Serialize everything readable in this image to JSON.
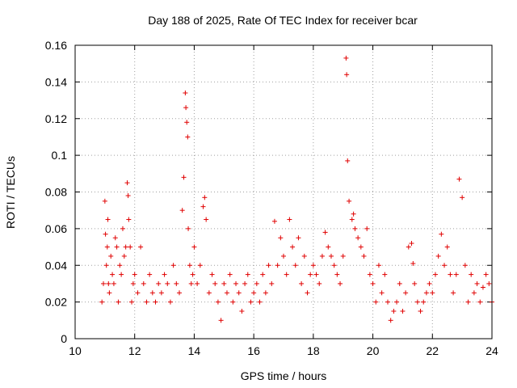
{
  "chart_data": {
    "type": "scatter",
    "title": "Day 188 of 2025, Rate Of TEC Index for receiver bcar",
    "xlabel": "GPS time / hours",
    "ylabel": "ROTI / TECUs",
    "xlim": [
      10,
      24
    ],
    "ylim": [
      0,
      0.16
    ],
    "x_ticks": [
      "10",
      "12",
      "14",
      "16",
      "18",
      "20",
      "22",
      "24"
    ],
    "y_ticks": [
      "0",
      "0.02",
      "0.04",
      "0.06",
      "0.08",
      "0.1",
      "0.12",
      "0.14",
      "0.16"
    ],
    "grid": true,
    "marker": "plus",
    "color": "#e00000",
    "series": [
      {
        "x": [
          10.9,
          10.95,
          11.0,
          11.02,
          11.05,
          11.08,
          11.1,
          11.12,
          11.15,
          11.2,
          11.25,
          11.3,
          11.35,
          11.4,
          11.45,
          11.5,
          11.55,
          11.6,
          11.65,
          11.7,
          11.75,
          11.78,
          11.8,
          11.85,
          11.9,
          11.95,
          12.0,
          12.1,
          12.2,
          12.3,
          12.4,
          12.5,
          12.6,
          12.7,
          12.8,
          12.9,
          13.0,
          13.1,
          13.2,
          13.3,
          13.4,
          13.5,
          13.6,
          13.65,
          13.7,
          13.72,
          13.75,
          13.78,
          13.8,
          13.85,
          13.9,
          13.95,
          14.0,
          14.1,
          14.2,
          14.3,
          14.35,
          14.4,
          14.5,
          14.6,
          14.7,
          14.8,
          14.9,
          15.0,
          15.1,
          15.2,
          15.3,
          15.4,
          15.5,
          15.6,
          15.7,
          15.8,
          15.9,
          16.0,
          16.1,
          16.2,
          16.3,
          16.4,
          16.5,
          16.6,
          16.7,
          16.8,
          16.9,
          17.0,
          17.1,
          17.2,
          17.3,
          17.4,
          17.5,
          17.6,
          17.7,
          17.8,
          17.9,
          18.0,
          18.1,
          18.2,
          18.3,
          18.4,
          18.5,
          18.6,
          18.7,
          18.8,
          18.9,
          19.0,
          19.1,
          19.12,
          19.15,
          19.2,
          19.3,
          19.35,
          19.4,
          19.5,
          19.6,
          19.7,
          19.8,
          19.9,
          20.0,
          20.1,
          20.2,
          20.3,
          20.4,
          20.5,
          20.6,
          20.7,
          20.8,
          20.9,
          21.0,
          21.1,
          21.2,
          21.3,
          21.35,
          21.4,
          21.5,
          21.6,
          21.7,
          21.8,
          21.9,
          22.0,
          22.1,
          22.2,
          22.3,
          22.4,
          22.5,
          22.6,
          22.7,
          22.8,
          22.9,
          23.0,
          23.1,
          23.2,
          23.3,
          23.4,
          23.5,
          23.6,
          23.7,
          23.8,
          23.9,
          24.0
        ],
        "y": [
          0.02,
          0.03,
          0.075,
          0.057,
          0.04,
          0.05,
          0.065,
          0.03,
          0.025,
          0.045,
          0.035,
          0.03,
          0.055,
          0.05,
          0.02,
          0.04,
          0.035,
          0.06,
          0.045,
          0.05,
          0.085,
          0.078,
          0.065,
          0.05,
          0.02,
          0.03,
          0.035,
          0.025,
          0.05,
          0.03,
          0.02,
          0.035,
          0.025,
          0.02,
          0.03,
          0.025,
          0.035,
          0.03,
          0.02,
          0.04,
          0.03,
          0.025,
          0.07,
          0.088,
          0.134,
          0.126,
          0.118,
          0.11,
          0.06,
          0.04,
          0.03,
          0.035,
          0.05,
          0.03,
          0.04,
          0.072,
          0.077,
          0.065,
          0.025,
          0.035,
          0.03,
          0.02,
          0.01,
          0.03,
          0.025,
          0.035,
          0.02,
          0.03,
          0.025,
          0.015,
          0.03,
          0.035,
          0.02,
          0.025,
          0.03,
          0.02,
          0.035,
          0.025,
          0.04,
          0.03,
          0.064,
          0.04,
          0.055,
          0.045,
          0.035,
          0.065,
          0.05,
          0.04,
          0.055,
          0.03,
          0.045,
          0.025,
          0.035,
          0.04,
          0.035,
          0.03,
          0.045,
          0.058,
          0.05,
          0.045,
          0.04,
          0.035,
          0.03,
          0.045,
          0.153,
          0.144,
          0.097,
          0.075,
          0.065,
          0.068,
          0.06,
          0.055,
          0.05,
          0.045,
          0.06,
          0.035,
          0.03,
          0.02,
          0.04,
          0.025,
          0.035,
          0.02,
          0.01,
          0.015,
          0.02,
          0.03,
          0.015,
          0.025,
          0.05,
          0.052,
          0.041,
          0.03,
          0.02,
          0.015,
          0.02,
          0.025,
          0.03,
          0.025,
          0.035,
          0.045,
          0.057,
          0.04,
          0.05,
          0.035,
          0.025,
          0.035,
          0.087,
          0.077,
          0.04,
          0.02,
          0.035,
          0.025,
          0.03,
          0.02,
          0.028,
          0.035,
          0.03,
          0.02
        ]
      }
    ]
  }
}
